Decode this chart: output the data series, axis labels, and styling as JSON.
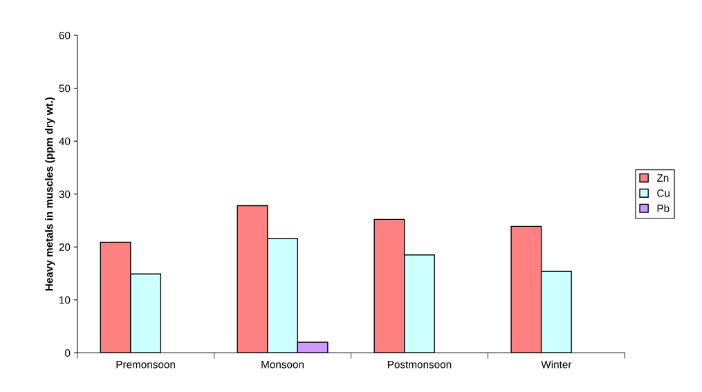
{
  "chart_data": {
    "type": "bar",
    "ylabel": "Heavy metals in muscles (ppm dry wt.)",
    "categories": [
      "Premonsoon",
      "Monsoon",
      "Postmonsoon",
      "Winter"
    ],
    "series": [
      {
        "name": "Zn",
        "color": "#ff8080",
        "values": [
          20.9,
          27.8,
          25.2,
          23.9
        ]
      },
      {
        "name": "Cu",
        "color": "#ccffff",
        "values": [
          14.9,
          21.6,
          18.5,
          15.4
        ]
      },
      {
        "name": "Pb",
        "color": "#cc99ff",
        "values": [
          null,
          2.0,
          null,
          null
        ]
      }
    ],
    "ylim": [
      0,
      60
    ],
    "yticks": [
      0,
      10,
      20,
      30,
      40,
      50,
      60
    ],
    "grid": false,
    "legend": "right"
  }
}
